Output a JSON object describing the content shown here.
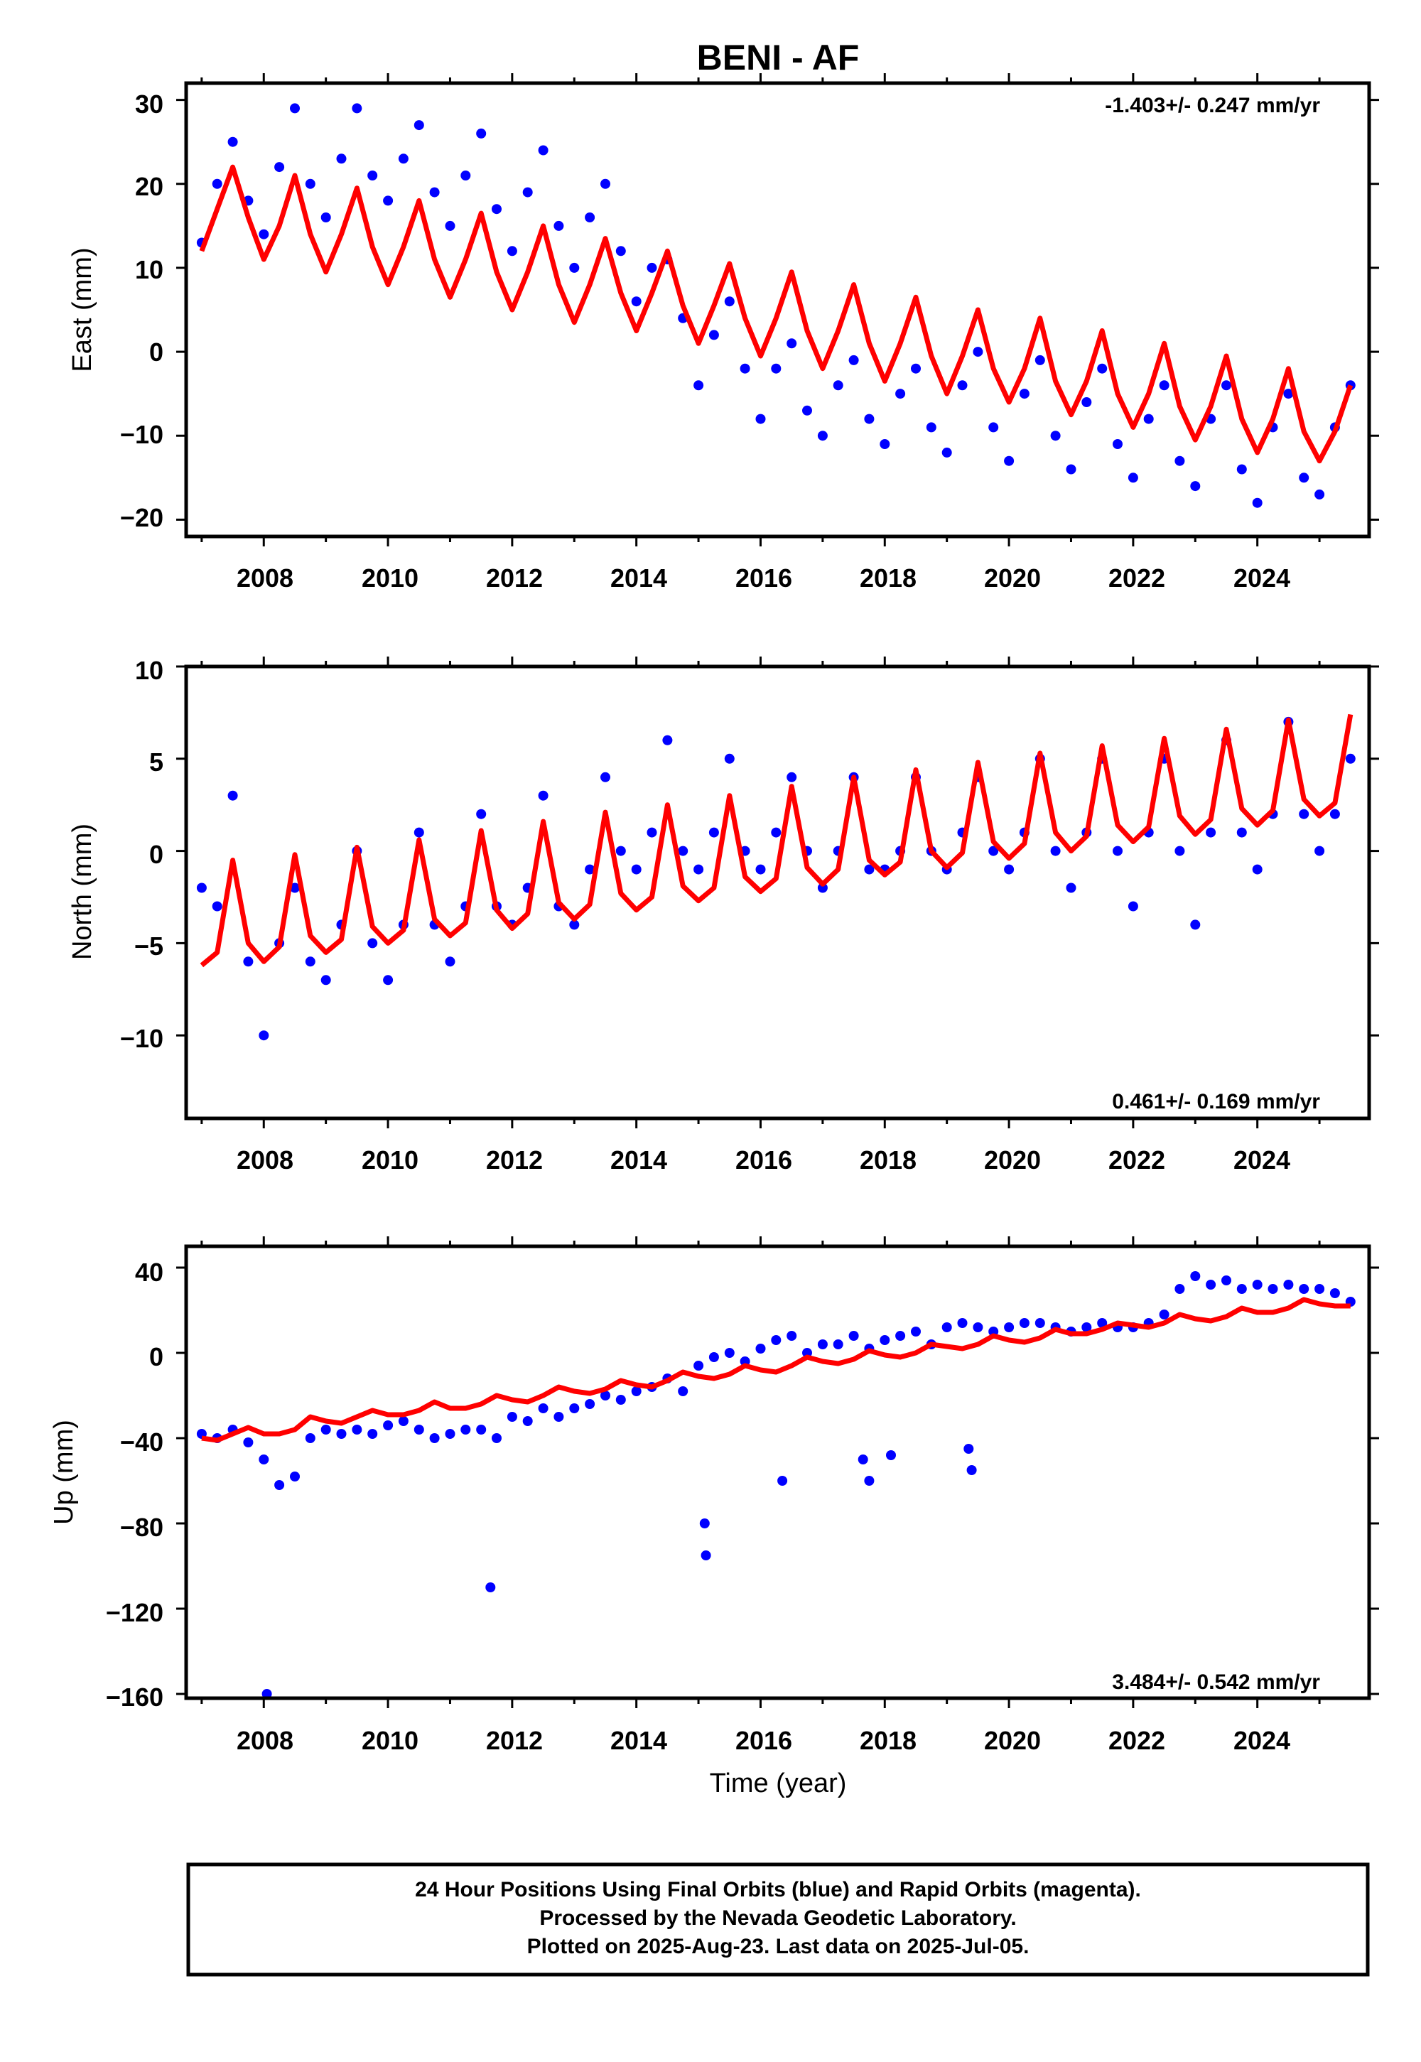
{
  "title": "BENI - AF",
  "xlabel": "Time (year)",
  "caption": {
    "line1": "24 Hour Positions Using Final Orbits (blue) and Rapid Orbits (magenta).",
    "line2": "Processed by the Nevada Geodetic Laboratory.",
    "line3": "Plotted on 2025-Aug-23. Last data on 2025-Jul-05."
  },
  "colors": {
    "final_orbits": "#0000ff",
    "model_fit": "#ff0000",
    "frame": "#000000"
  },
  "chart_data": [
    {
      "type": "scatter",
      "ylabel": "East (mm)",
      "rate_label": "-1.403+/- 0.247 mm/yr",
      "rate_position": "top-right",
      "xlim": [
        2006.75,
        2025.8
      ],
      "ylim": [
        -22,
        32
      ],
      "xticks": [
        "2008",
        "2010",
        "2012",
        "2014",
        "2016",
        "2018",
        "2020",
        "2022",
        "2024"
      ],
      "yticks": [
        "30",
        "20",
        "10",
        "0",
        "−10",
        "−20"
      ],
      "series": [
        {
          "kind": "points",
          "x": [
            2007.0,
            2007.25,
            2007.5,
            2007.75,
            2008.0,
            2008.25,
            2008.5,
            2008.75,
            2009.0,
            2009.25,
            2009.5,
            2009.75,
            2010.0,
            2010.25,
            2010.5,
            2010.75,
            2011.0,
            2011.25,
            2011.5,
            2011.75,
            2012.0,
            2012.25,
            2012.5,
            2012.75,
            2013.0,
            2013.25,
            2013.5,
            2013.75,
            2014.0,
            2014.25,
            2014.5,
            2014.75,
            2015.0,
            2015.25,
            2015.5,
            2015.75,
            2016.0,
            2016.25,
            2016.5,
            2016.75,
            2017.0,
            2017.25,
            2017.5,
            2017.75,
            2018.0,
            2018.25,
            2018.5,
            2018.75,
            2019.0,
            2019.25,
            2019.5,
            2019.75,
            2020.0,
            2020.25,
            2020.5,
            2020.75,
            2021.0,
            2021.25,
            2021.5,
            2021.75,
            2022.0,
            2022.25,
            2022.5,
            2022.75,
            2023.0,
            2023.25,
            2023.5,
            2023.75,
            2024.0,
            2024.25,
            2024.5,
            2024.75,
            2025.0,
            2025.25,
            2025.5
          ],
          "y": [
            13,
            20,
            25,
            18,
            14,
            22,
            29,
            20,
            16,
            23,
            29,
            21,
            18,
            23,
            27,
            19,
            15,
            21,
            26,
            17,
            12,
            19,
            24,
            15,
            10,
            16,
            20,
            12,
            6,
            10,
            11,
            4,
            -4,
            2,
            6,
            -2,
            -8,
            -2,
            1,
            -7,
            -10,
            -4,
            -1,
            -8,
            -11,
            -5,
            -2,
            -9,
            -12,
            -4,
            0,
            -9,
            -13,
            -5,
            -1,
            -10,
            -14,
            -6,
            -2,
            -11,
            -15,
            -8,
            -4,
            -13,
            -16,
            -8,
            -4,
            -14,
            -18,
            -9,
            -5,
            -15,
            -17,
            -9,
            -4
          ]
        },
        {
          "kind": "model",
          "x": [
            2007.0,
            2007.25,
            2007.5,
            2007.75,
            2008.0,
            2008.25,
            2008.5,
            2008.75,
            2009.0,
            2009.25,
            2009.5,
            2009.75,
            2010.0,
            2010.25,
            2010.5,
            2010.75,
            2011.0,
            2011.25,
            2011.5,
            2011.75,
            2012.0,
            2012.25,
            2012.5,
            2012.75,
            2013.0,
            2013.25,
            2013.5,
            2013.75,
            2014.0,
            2014.25,
            2014.5,
            2014.75,
            2015.0,
            2015.25,
            2015.5,
            2015.75,
            2016.0,
            2016.25,
            2016.5,
            2016.75,
            2017.0,
            2017.25,
            2017.5,
            2017.75,
            2018.0,
            2018.25,
            2018.5,
            2018.75,
            2019.0,
            2019.25,
            2019.5,
            2019.75,
            2020.0,
            2020.25,
            2020.5,
            2020.75,
            2021.0,
            2021.25,
            2021.5,
            2021.75,
            2022.0,
            2022.25,
            2022.5,
            2022.75,
            2023.0,
            2023.25,
            2023.5,
            2023.75,
            2024.0,
            2024.25,
            2024.5,
            2024.75,
            2025.0,
            2025.25,
            2025.5
          ],
          "y": [
            12,
            17,
            22,
            16,
            11,
            15,
            21,
            14,
            9.5,
            14,
            19.5,
            12.5,
            8,
            12.5,
            18,
            11,
            6.5,
            11,
            16.5,
            9.5,
            5,
            9.5,
            15,
            8,
            3.5,
            8,
            13.5,
            7,
            2.5,
            7,
            12,
            5.5,
            1,
            5.5,
            10.5,
            4,
            -0.5,
            4,
            9.5,
            2.5,
            -2,
            2.5,
            8,
            1,
            -3.5,
            1,
            6.5,
            -0.5,
            -5,
            -0.5,
            5,
            -2,
            -6,
            -2,
            4,
            -3.5,
            -7.5,
            -3.5,
            2.5,
            -5,
            -9,
            -5,
            1,
            -6.5,
            -10.5,
            -6.5,
            -0.5,
            -8,
            -12,
            -8,
            -2,
            -9.5,
            -13,
            -9.5,
            -4
          ]
        }
      ]
    },
    {
      "type": "scatter",
      "ylabel": "North (mm)",
      "rate_label": "0.461+/- 0.169 mm/yr",
      "rate_position": "bottom-right",
      "xlim": [
        2006.75,
        2025.8
      ],
      "ylim": [
        -14.5,
        10
      ],
      "xticks": [
        "2008",
        "2010",
        "2012",
        "2014",
        "2016",
        "2018",
        "2020",
        "2022",
        "2024"
      ],
      "yticks": [
        "10",
        "5",
        "0",
        "−5",
        "−10"
      ],
      "series": [
        {
          "kind": "points",
          "x": [
            2007.0,
            2007.25,
            2007.5,
            2007.75,
            2008.0,
            2008.25,
            2008.5,
            2008.75,
            2009.0,
            2009.25,
            2009.5,
            2009.75,
            2010.0,
            2010.25,
            2010.5,
            2010.75,
            2011.0,
            2011.25,
            2011.5,
            2011.75,
            2012.0,
            2012.25,
            2012.5,
            2012.75,
            2013.0,
            2013.25,
            2013.5,
            2013.75,
            2014.0,
            2014.25,
            2014.5,
            2014.75,
            2015.0,
            2015.25,
            2015.5,
            2015.75,
            2016.0,
            2016.25,
            2016.5,
            2016.75,
            2017.0,
            2017.25,
            2017.5,
            2017.75,
            2018.0,
            2018.25,
            2018.5,
            2018.75,
            2019.0,
            2019.25,
            2019.5,
            2019.75,
            2020.0,
            2020.25,
            2020.5,
            2020.75,
            2021.0,
            2021.25,
            2021.5,
            2021.75,
            2022.0,
            2022.25,
            2022.5,
            2022.75,
            2023.0,
            2023.25,
            2023.5,
            2023.75,
            2024.0,
            2024.25,
            2024.5,
            2024.75,
            2025.0,
            2025.25,
            2025.5
          ],
          "y": [
            -2,
            -3,
            3,
            -6,
            -10,
            -5,
            -2,
            -6,
            -7,
            -4,
            0,
            -5,
            -7,
            -4,
            1,
            -4,
            -6,
            -3,
            2,
            -3,
            -4,
            -2,
            3,
            -3,
            -4,
            -1,
            4,
            0,
            -1,
            1,
            6,
            0,
            -1,
            1,
            5,
            0,
            -1,
            1,
            4,
            0,
            -2,
            0,
            4,
            -1,
            -1,
            0,
            4,
            0,
            -1,
            1,
            4,
            0,
            -1,
            1,
            5,
            0,
            -2,
            1,
            5,
            0,
            -3,
            1,
            5,
            0,
            -4,
            1,
            6,
            1,
            -1,
            2,
            7,
            2,
            0,
            2,
            5
          ]
        },
        {
          "kind": "model",
          "x": [
            2007.0,
            2007.25,
            2007.5,
            2007.75,
            2008.0,
            2008.25,
            2008.5,
            2008.75,
            2009.0,
            2009.25,
            2009.5,
            2009.75,
            2010.0,
            2010.25,
            2010.5,
            2010.75,
            2011.0,
            2011.25,
            2011.5,
            2011.75,
            2012.0,
            2012.25,
            2012.5,
            2012.75,
            2013.0,
            2013.25,
            2013.5,
            2013.75,
            2014.0,
            2014.25,
            2014.5,
            2014.75,
            2015.0,
            2015.25,
            2015.5,
            2015.75,
            2016.0,
            2016.25,
            2016.5,
            2016.75,
            2017.0,
            2017.25,
            2017.5,
            2017.75,
            2018.0,
            2018.25,
            2018.5,
            2018.75,
            2019.0,
            2019.25,
            2019.5,
            2019.75,
            2020.0,
            2020.25,
            2020.5,
            2020.75,
            2021.0,
            2021.25,
            2021.5,
            2021.75,
            2022.0,
            2022.25,
            2022.5,
            2022.75,
            2023.0,
            2023.25,
            2023.5,
            2023.75,
            2024.0,
            2024.25,
            2024.5,
            2024.75,
            2025.0,
            2025.25,
            2025.5
          ],
          "y": [
            -6.2,
            -5.5,
            -0.5,
            -5,
            -6,
            -5.2,
            -0.2,
            -4.6,
            -5.5,
            -4.8,
            0.2,
            -4.1,
            -5,
            -4.3,
            0.6,
            -3.7,
            -4.6,
            -3.9,
            1.1,
            -3.2,
            -4.2,
            -3.4,
            1.6,
            -2.8,
            -3.7,
            -2.9,
            2.1,
            -2.3,
            -3.2,
            -2.5,
            2.5,
            -1.9,
            -2.7,
            -2,
            3,
            -1.4,
            -2.2,
            -1.5,
            3.5,
            -0.9,
            -1.8,
            -1,
            4,
            -0.5,
            -1.3,
            -0.6,
            4.4,
            0,
            -0.9,
            -0.1,
            4.8,
            0.5,
            -0.4,
            0.4,
            5.3,
            1,
            0,
            0.8,
            5.7,
            1.4,
            0.5,
            1.3,
            6.1,
            1.9,
            0.9,
            1.7,
            6.6,
            2.3,
            1.4,
            2.2,
            7.1,
            2.8,
            1.9,
            2.6,
            7.4
          ]
        }
      ]
    },
    {
      "type": "scatter",
      "ylabel": "Up (mm)",
      "rate_label": "3.484+/- 0.542 mm/yr",
      "rate_position": "bottom-right",
      "xlim": [
        2006.75,
        2025.8
      ],
      "ylim": [
        -162,
        50
      ],
      "xticks": [
        "2008",
        "2010",
        "2012",
        "2014",
        "2016",
        "2018",
        "2020",
        "2022",
        "2024"
      ],
      "yticks": [
        "40",
        "0",
        "−40",
        "−80",
        "−120",
        "−160"
      ],
      "series": [
        {
          "kind": "points",
          "x": [
            2007.0,
            2007.25,
            2007.5,
            2007.75,
            2008.0,
            2008.25,
            2008.5,
            2008.75,
            2009.0,
            2009.25,
            2009.5,
            2009.75,
            2010.0,
            2010.25,
            2010.5,
            2010.75,
            2011.0,
            2011.25,
            2011.5,
            2011.75,
            2012.0,
            2012.25,
            2012.5,
            2012.75,
            2013.0,
            2013.25,
            2013.5,
            2013.75,
            2014.0,
            2014.25,
            2014.5,
            2014.75,
            2015.0,
            2015.25,
            2015.5,
            2015.75,
            2016.0,
            2016.25,
            2016.5,
            2016.75,
            2017.0,
            2017.25,
            2017.5,
            2017.75,
            2018.0,
            2018.25,
            2018.5,
            2018.75,
            2019.0,
            2019.25,
            2019.5,
            2019.75,
            2020.0,
            2020.25,
            2020.5,
            2020.75,
            2021.0,
            2021.25,
            2021.5,
            2021.75,
            2022.0,
            2022.25,
            2022.5,
            2022.75,
            2023.0,
            2023.25,
            2023.5,
            2023.75,
            2024.0,
            2024.25,
            2024.5,
            2024.75,
            2025.0,
            2025.25,
            2025.5,
            2008.05,
            2011.65,
            2015.1,
            2015.12,
            2016.35,
            2017.65,
            2017.75,
            2018.1,
            2019.35,
            2019.4
          ],
          "y": [
            -38,
            -40,
            -36,
            -42,
            -50,
            -62,
            -58,
            -40,
            -36,
            -38,
            -36,
            -38,
            -34,
            -32,
            -36,
            -40,
            -38,
            -36,
            -36,
            -40,
            -30,
            -32,
            -26,
            -30,
            -26,
            -24,
            -20,
            -22,
            -18,
            -16,
            -12,
            -18,
            -6,
            -2,
            0,
            -4,
            2,
            6,
            8,
            0,
            4,
            4,
            8,
            2,
            6,
            8,
            10,
            4,
            12,
            14,
            12,
            10,
            12,
            14,
            14,
            12,
            10,
            12,
            14,
            12,
            12,
            14,
            18,
            30,
            36,
            32,
            34,
            30,
            32,
            30,
            32,
            30,
            30,
            28,
            24,
            -160,
            -110,
            -80,
            -95,
            -60,
            -50,
            -60,
            -48,
            -45,
            -55
          ]
        },
        {
          "kind": "model",
          "x": [
            2007.0,
            2007.25,
            2007.5,
            2007.75,
            2008.0,
            2008.25,
            2008.5,
            2008.75,
            2009.0,
            2009.25,
            2009.5,
            2009.75,
            2010.0,
            2010.25,
            2010.5,
            2010.75,
            2011.0,
            2011.25,
            2011.5,
            2011.75,
            2012.0,
            2012.25,
            2012.5,
            2012.75,
            2013.0,
            2013.25,
            2013.5,
            2013.75,
            2014.0,
            2014.25,
            2014.5,
            2014.75,
            2015.0,
            2015.25,
            2015.5,
            2015.75,
            2016.0,
            2016.25,
            2016.5,
            2016.75,
            2017.0,
            2017.25,
            2017.5,
            2017.75,
            2018.0,
            2018.25,
            2018.5,
            2018.75,
            2019.0,
            2019.25,
            2019.5,
            2019.75,
            2020.0,
            2020.25,
            2020.5,
            2020.75,
            2021.0,
            2021.25,
            2021.5,
            2021.75,
            2022.0,
            2022.25,
            2022.5,
            2022.75,
            2023.0,
            2023.25,
            2023.5,
            2023.75,
            2024.0,
            2024.25,
            2024.5,
            2024.75,
            2025.0,
            2025.25,
            2025.5
          ],
          "y": [
            -40,
            -41,
            -38,
            -35,
            -38,
            -38,
            -36,
            -30,
            -32,
            -33,
            -30,
            -27,
            -29,
            -29,
            -27,
            -23,
            -26,
            -26,
            -24,
            -20,
            -22,
            -23,
            -20,
            -16,
            -18,
            -19,
            -17,
            -13,
            -15,
            -16,
            -13,
            -9,
            -11,
            -12,
            -10,
            -6,
            -8,
            -9,
            -6,
            -2,
            -4,
            -5,
            -3,
            1,
            -1,
            -2,
            0,
            4,
            3,
            2,
            4,
            8,
            6,
            5,
            7,
            11,
            9,
            9,
            11,
            14,
            13,
            12,
            14,
            18,
            16,
            15,
            17,
            21,
            19,
            19,
            21,
            25,
            23,
            22,
            22
          ]
        }
      ]
    }
  ]
}
